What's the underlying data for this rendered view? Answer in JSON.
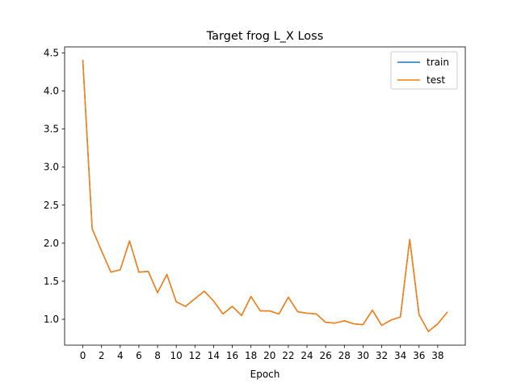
{
  "chart_data": {
    "type": "line",
    "title": "Target frog L_X Loss",
    "xlabel": "Epoch",
    "ylabel": "",
    "xlim": [
      -1.95,
      40.95
    ],
    "ylim": [
      0.66,
      4.58
    ],
    "xticks": [
      0,
      2,
      4,
      6,
      8,
      10,
      12,
      14,
      16,
      18,
      20,
      22,
      24,
      26,
      28,
      30,
      32,
      34,
      36,
      38
    ],
    "yticks": [
      1.0,
      1.5,
      2.0,
      2.5,
      3.0,
      3.5,
      4.0,
      4.5
    ],
    "ytick_labels": [
      "1.0",
      "1.5",
      "2.0",
      "2.5",
      "3.0",
      "3.5",
      "4.0",
      "4.5"
    ],
    "grid": false,
    "legend": "top-right",
    "x": [
      0,
      1,
      2,
      3,
      4,
      5,
      6,
      7,
      8,
      9,
      10,
      11,
      12,
      13,
      14,
      15,
      16,
      17,
      18,
      19,
      20,
      21,
      22,
      23,
      24,
      25,
      26,
      27,
      28,
      29,
      30,
      31,
      32,
      33,
      34,
      35,
      36,
      37,
      38,
      39
    ],
    "series": [
      {
        "name": "train",
        "color": "#1f77b4",
        "values": [
          4.4,
          2.19,
          1.9,
          1.62,
          1.65,
          2.03,
          1.62,
          1.63,
          1.35,
          1.59,
          1.23,
          1.17,
          1.27,
          1.37,
          1.24,
          1.07,
          1.17,
          1.05,
          1.3,
          1.11,
          1.11,
          1.07,
          1.29,
          1.1,
          1.08,
          1.07,
          0.96,
          0.95,
          0.98,
          0.94,
          0.93,
          1.12,
          0.92,
          0.99,
          1.03,
          2.05,
          1.06,
          0.84,
          0.94,
          1.09
        ]
      },
      {
        "name": "test",
        "color": "#ff7f0e",
        "values": [
          4.4,
          2.19,
          1.9,
          1.62,
          1.65,
          2.03,
          1.62,
          1.63,
          1.35,
          1.59,
          1.23,
          1.17,
          1.27,
          1.37,
          1.24,
          1.07,
          1.17,
          1.05,
          1.3,
          1.11,
          1.11,
          1.07,
          1.29,
          1.1,
          1.08,
          1.07,
          0.96,
          0.95,
          0.98,
          0.94,
          0.93,
          1.12,
          0.92,
          0.99,
          1.03,
          2.05,
          1.06,
          0.84,
          0.94,
          1.09
        ]
      }
    ]
  }
}
